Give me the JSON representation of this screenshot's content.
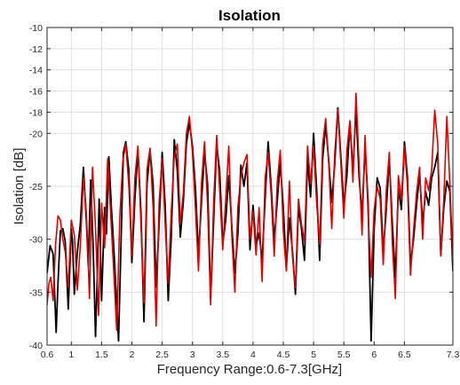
{
  "chart_data": {
    "type": "line",
    "title": "Isolation",
    "xlabel": "Frequency Range:0.6-7.3[GHz]",
    "ylabel": "Isolation [dB]",
    "xlim": [
      0.6,
      7.3
    ],
    "ylim": [
      -40,
      -10
    ],
    "xticks": [
      0.6,
      1,
      1.5,
      2,
      2.5,
      3,
      3.5,
      4,
      4.5,
      5,
      5.5,
      6,
      6.5,
      7.3
    ],
    "xtick_labels": [
      "0.6",
      "1",
      "1.5",
      "2",
      "2.5",
      "3",
      "3.5",
      "4",
      "4.5",
      "5",
      "5.5",
      "6",
      "6.5",
      "7.3"
    ],
    "yticks": [
      -40,
      -35,
      -30,
      -25,
      -20,
      -18,
      -16,
      -14,
      -12,
      -10
    ],
    "ytick_labels": [
      "-40",
      "-35",
      "-30",
      "-25",
      "-20",
      "-18",
      "-16",
      "-14",
      "-12",
      "-10"
    ],
    "grid": true,
    "legend": false,
    "series": [
      {
        "color": "#000000",
        "x": [
          0.6,
          0.65,
          0.7,
          0.75,
          0.78,
          0.82,
          0.86,
          0.9,
          0.95,
          1.0,
          1.02,
          1.05,
          1.1,
          1.15,
          1.2,
          1.25,
          1.28,
          1.32,
          1.36,
          1.4,
          1.43,
          1.46,
          1.5,
          1.55,
          1.58,
          1.62,
          1.66,
          1.7,
          1.74,
          1.78,
          1.82,
          1.86,
          1.9,
          1.95,
          2.0,
          2.05,
          2.1,
          2.15,
          2.2,
          2.25,
          2.3,
          2.35,
          2.4,
          2.45,
          2.5,
          2.55,
          2.6,
          2.65,
          2.7,
          2.75,
          2.8,
          2.85,
          2.9,
          2.95,
          3.0,
          3.05,
          3.1,
          3.15,
          3.2,
          3.25,
          3.3,
          3.35,
          3.4,
          3.45,
          3.5,
          3.55,
          3.6,
          3.65,
          3.7,
          3.75,
          3.8,
          3.85,
          3.9,
          3.95,
          4.0,
          4.05,
          4.1,
          4.15,
          4.2,
          4.25,
          4.3,
          4.35,
          4.4,
          4.45,
          4.5,
          4.55,
          4.6,
          4.65,
          4.7,
          4.75,
          4.8,
          4.85,
          4.9,
          4.95,
          5.0,
          5.05,
          5.1,
          5.15,
          5.2,
          5.25,
          5.3,
          5.35,
          5.4,
          5.45,
          5.5,
          5.55,
          5.6,
          5.65,
          5.7,
          5.75,
          5.8,
          5.85,
          5.9,
          5.95,
          6.0,
          6.05,
          6.1,
          6.15,
          6.2,
          6.25,
          6.3,
          6.35,
          6.4,
          6.45,
          6.5,
          6.55,
          6.6,
          6.65,
          6.7,
          6.75,
          6.8,
          6.85,
          6.9,
          6.95,
          7.0,
          7.05,
          7.1,
          7.15,
          7.2,
          7.25,
          7.3
        ],
        "y": [
          -33.2,
          -30.6,
          -31.4,
          -38.8,
          -34.2,
          -29.2,
          -29.0,
          -30.2,
          -36.6,
          -29.0,
          -30.2,
          -35.2,
          -31.2,
          -28.5,
          -23.2,
          -28.4,
          -32.5,
          -24.4,
          -30.5,
          -39.2,
          -33.2,
          -26.2,
          -35.8,
          -27.0,
          -29.5,
          -22.2,
          -26.8,
          -30.6,
          -35.0,
          -39.6,
          -30.6,
          -21.8,
          -20.8,
          -23.5,
          -32.2,
          -26.2,
          -21.6,
          -27.5,
          -37.8,
          -24.8,
          -21.6,
          -24.8,
          -34.5,
          -28.5,
          -21.8,
          -26.8,
          -35.8,
          -29.8,
          -20.6,
          -23.5,
          -29.8,
          -26.4,
          -21.0,
          -19.0,
          -21.2,
          -25.2,
          -31.5,
          -26.4,
          -21.8,
          -24.8,
          -35.6,
          -28.2,
          -21.0,
          -23.6,
          -30.4,
          -28.2,
          -24.0,
          -28.8,
          -33.2,
          -29.5,
          -23.0,
          -25.0,
          -22.8,
          -31.0,
          -26.8,
          -30.6,
          -29.4,
          -32.0,
          -26.2,
          -20.8,
          -25.0,
          -30.2,
          -26.4,
          -22.8,
          -27.0,
          -32.8,
          -28.0,
          -31.0,
          -35.2,
          -27.0,
          -29.0,
          -32.0,
          -22.5,
          -26.0,
          -20.0,
          -25.2,
          -32.0,
          -22.4,
          -19.2,
          -22.6,
          -26.5,
          -22.8,
          -17.6,
          -22.2,
          -26.8,
          -24.0,
          -19.0,
          -23.6,
          -17.6,
          -24.0,
          -27.8,
          -21.2,
          -26.5,
          -39.6,
          -29.0,
          -24.2,
          -25.2,
          -31.2,
          -27.2,
          -22.4,
          -28.5,
          -33.6,
          -25.2,
          -27.2,
          -20.8,
          -24.2,
          -32.5,
          -30.0,
          -26.8,
          -23.8,
          -28.5,
          -25.5,
          -26.8,
          -24.2,
          -23.2,
          -21.8,
          -31.5,
          -27.0,
          -24.5,
          -25.5,
          -33.0
        ]
      },
      {
        "color": "#e00000",
        "x": [
          0.6,
          0.63,
          0.66,
          0.7,
          0.74,
          0.78,
          0.82,
          0.86,
          0.9,
          0.95,
          1.0,
          1.05,
          1.1,
          1.15,
          1.2,
          1.25,
          1.3,
          1.35,
          1.4,
          1.45,
          1.5,
          1.55,
          1.6,
          1.65,
          1.7,
          1.75,
          1.8,
          1.85,
          1.9,
          1.95,
          2.0,
          2.05,
          2.1,
          2.15,
          2.2,
          2.25,
          2.3,
          2.35,
          2.4,
          2.45,
          2.5,
          2.55,
          2.6,
          2.65,
          2.7,
          2.75,
          2.8,
          2.85,
          2.9,
          2.95,
          3.0,
          3.05,
          3.1,
          3.15,
          3.2,
          3.25,
          3.3,
          3.35,
          3.4,
          3.45,
          3.5,
          3.55,
          3.6,
          3.65,
          3.7,
          3.75,
          3.8,
          3.85,
          3.9,
          3.95,
          4.0,
          4.05,
          4.1,
          4.15,
          4.2,
          4.25,
          4.3,
          4.35,
          4.4,
          4.45,
          4.5,
          4.55,
          4.6,
          4.65,
          4.7,
          4.75,
          4.8,
          4.85,
          4.9,
          4.95,
          5.0,
          5.05,
          5.1,
          5.15,
          5.2,
          5.25,
          5.3,
          5.35,
          5.4,
          5.45,
          5.5,
          5.55,
          5.6,
          5.65,
          5.7,
          5.75,
          5.8,
          5.85,
          5.9,
          5.95,
          6.0,
          6.05,
          6.1,
          6.15,
          6.2,
          6.25,
          6.3,
          6.35,
          6.4,
          6.45,
          6.5,
          6.55,
          6.6,
          6.65,
          6.7,
          6.75,
          6.8,
          6.85,
          6.9,
          6.95,
          7.0,
          7.05,
          7.1,
          7.15,
          7.2,
          7.25,
          7.3
        ],
        "y": [
          -36.2,
          -34.2,
          -33.6,
          -35.8,
          -30.5,
          -27.8,
          -28.2,
          -30.0,
          -31.2,
          -34.5,
          -28.2,
          -29.6,
          -34.8,
          -30.5,
          -24.2,
          -27.6,
          -35.6,
          -23.2,
          -29.0,
          -37.2,
          -26.6,
          -30.8,
          -22.4,
          -27.6,
          -33.0,
          -38.6,
          -28.0,
          -22.6,
          -21.0,
          -25.0,
          -31.5,
          -24.2,
          -21.2,
          -28.6,
          -36.0,
          -23.4,
          -21.4,
          -27.0,
          -38.2,
          -26.5,
          -22.4,
          -28.6,
          -34.2,
          -27.4,
          -22.2,
          -21.0,
          -28.6,
          -25.6,
          -20.0,
          -18.4,
          -21.8,
          -27.2,
          -33.0,
          -24.6,
          -20.8,
          -26.8,
          -36.2,
          -26.5,
          -20.2,
          -25.4,
          -31.0,
          -26.2,
          -21.2,
          -29.6,
          -35.0,
          -27.0,
          -24.0,
          -22.8,
          -22.0,
          -30.0,
          -27.4,
          -31.5,
          -27.0,
          -34.0,
          -24.2,
          -21.8,
          -25.8,
          -31.6,
          -24.6,
          -21.6,
          -29.2,
          -33.0,
          -24.5,
          -31.6,
          -34.6,
          -26.2,
          -28.6,
          -30.2,
          -21.2,
          -24.8,
          -21.2,
          -26.5,
          -30.5,
          -21.0,
          -18.6,
          -22.8,
          -29.0,
          -21.8,
          -17.8,
          -22.8,
          -28.0,
          -21.6,
          -18.8,
          -24.6,
          -16.2,
          -22.8,
          -29.6,
          -20.2,
          -27.6,
          -33.6,
          -27.2,
          -25.0,
          -26.2,
          -32.4,
          -25.4,
          -21.8,
          -30.4,
          -35.6,
          -24.0,
          -26.2,
          -21.2,
          -25.0,
          -33.4,
          -29.2,
          -25.6,
          -23.2,
          -30.0,
          -24.2,
          -25.4,
          -23.4,
          -17.8,
          -21.0,
          -31.6,
          -26.2,
          -18.4,
          -24.8,
          -32.0
        ]
      }
    ]
  }
}
